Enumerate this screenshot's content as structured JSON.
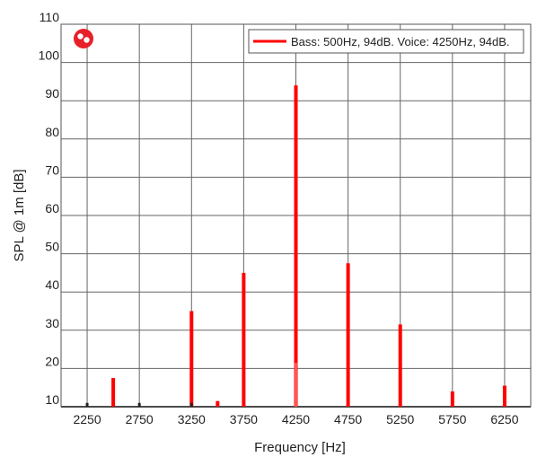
{
  "chart_data": {
    "type": "bar",
    "xlabel": "Frequency [Hz]",
    "ylabel": "SPL @ 1m [dB]",
    "xlim": [
      2000,
      6500
    ],
    "ylim": [
      10,
      110
    ],
    "x_ticks": [
      2250,
      2750,
      3250,
      3750,
      4250,
      4750,
      5250,
      5750,
      6250
    ],
    "y_ticks": [
      10,
      20,
      30,
      40,
      50,
      60,
      70,
      80,
      90,
      100,
      110
    ],
    "grid": true,
    "legend_position": "top-right",
    "series": [
      {
        "name": "Bass: 500Hz, 94dB. Voice: 4250Hz, 94dB.",
        "color": "#ff0000",
        "x": [
          2500,
          3250,
          3500,
          3750,
          4250,
          4750,
          5250,
          5750,
          6250
        ],
        "values": [
          17.5,
          35,
          11.5,
          45,
          94,
          47.5,
          31.5,
          14,
          15.5
        ]
      }
    ],
    "minor_marks": [
      {
        "color": "#222222",
        "x": [
          2250,
          2750,
          3250
        ],
        "values": [
          11,
          11,
          11
        ]
      },
      {
        "color": "#ff5555",
        "x": [
          4250
        ],
        "values": [
          21.5
        ]
      }
    ]
  },
  "logo": {
    "name": "brand-logo-icon",
    "color": "#e8202a"
  }
}
